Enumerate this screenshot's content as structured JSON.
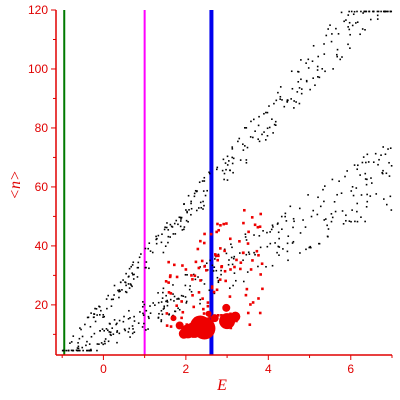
{
  "chart_data": {
    "type": "scatter",
    "xlabel": "E",
    "ylabel": "<n>",
    "xlim": [
      -1.15,
      7
    ],
    "ylim": [
      3,
      120
    ],
    "x_ticks": [
      0,
      2,
      4,
      6
    ],
    "y_ticks": [
      20,
      40,
      60,
      80,
      100,
      120
    ],
    "grid": false,
    "legend": "none",
    "colors": {
      "axes": "#e00000",
      "background_points": "#000000",
      "highlight_points": "#ee0000",
      "vline_green": "#007a00",
      "vline_magenta": "#ff00ff",
      "vline_blue": "#0000ee"
    },
    "vertical_lines": [
      {
        "x": -0.95,
        "color": "#007a00",
        "width": 2
      },
      {
        "x": 1.0,
        "color": "#ff00ff",
        "width": 2
      },
      {
        "x": 2.62,
        "color": "#0000ee",
        "width": 4
      }
    ],
    "series": [
      {
        "kind": "band_upper",
        "generator": "random_band",
        "x_range": [
          -1.0,
          7.0
        ],
        "slope": 16.0,
        "intercept": 3.0,
        "spread": 14.0,
        "count": 320,
        "color": "#000000",
        "marker": "dot"
      },
      {
        "kind": "band_lower",
        "generator": "random_band",
        "x_range": [
          -0.8,
          7.0
        ],
        "slope": 8.0,
        "intercept": 2.0,
        "spread": 18.0,
        "count": 330,
        "color": "#000000",
        "marker": "dot"
      },
      {
        "kind": "highlight_small",
        "generator": "random_cloud",
        "x_range": [
          1.5,
          3.9
        ],
        "y_range": [
          12,
          60
        ],
        "count": 110,
        "color": "#ee0000",
        "marker": "square"
      }
    ],
    "large_points": [
      {
        "x": 2.2,
        "y": 11.5,
        "size": 8
      },
      {
        "x": 2.35,
        "y": 13.0,
        "size": 10
      },
      {
        "x": 2.45,
        "y": 12.0,
        "size": 11
      },
      {
        "x": 2.05,
        "y": 11.0,
        "size": 7
      },
      {
        "x": 1.95,
        "y": 10.2,
        "size": 5
      },
      {
        "x": 1.85,
        "y": 13.0,
        "size": 4
      },
      {
        "x": 3.0,
        "y": 14.5,
        "size": 8
      },
      {
        "x": 3.2,
        "y": 16.0,
        "size": 5
      },
      {
        "x": 2.98,
        "y": 19.0,
        "size": 4
      },
      {
        "x": 2.7,
        "y": 15.5,
        "size": 4
      },
      {
        "x": 2.55,
        "y": 17.0,
        "size": 3
      },
      {
        "x": 1.7,
        "y": 15.5,
        "size": 3
      }
    ]
  }
}
